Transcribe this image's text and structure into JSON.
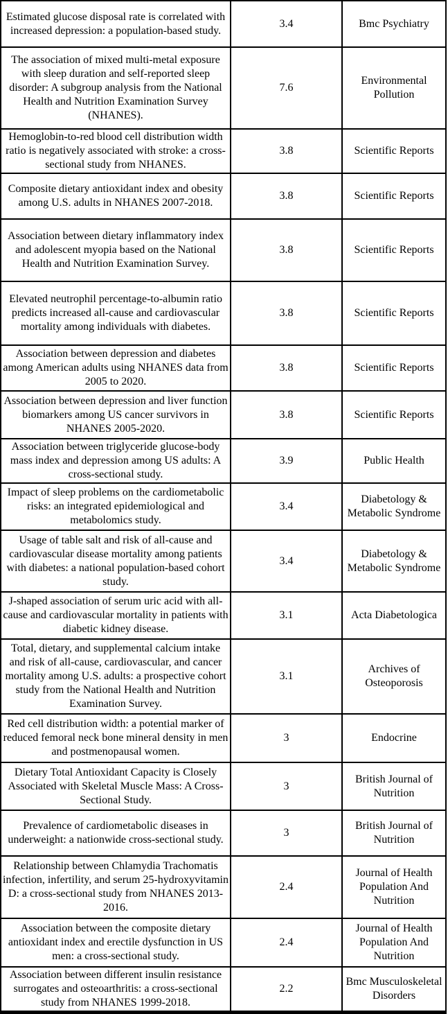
{
  "page": {
    "background_color": "#ffffff",
    "text_color": "#000000",
    "border_color": "#000000"
  },
  "table": {
    "rows": [
      {
        "title": "Estimated glucose disposal rate is correlated with increased depression: a population-based study.",
        "impact_factor": "3.4",
        "journal": "Bmc Psychiatry"
      },
      {
        "title": "The association of mixed multi-metal exposure with sleep duration and self-reported sleep disorder: A subgroup analysis from the National Health and Nutrition Examination Survey (NHANES).",
        "impact_factor": "7.6",
        "journal": "Environmental Pollution"
      },
      {
        "title": "Hemoglobin-to-red blood cell distribution width ratio is negatively associated with stroke: a cross-sectional study from NHANES.",
        "impact_factor": "3.8",
        "journal": "Scientific Reports"
      },
      {
        "title": "Composite dietary antioxidant index and obesity among U.S. adults in NHANES 2007-2018.",
        "impact_factor": "3.8",
        "journal": "Scientific Reports"
      },
      {
        "title": "Association between dietary inflammatory index and adolescent myopia based on the National Health and Nutrition Examination Survey.",
        "impact_factor": "3.8",
        "journal": "Scientific Reports"
      },
      {
        "title": "Elevated neutrophil percentage-to-albumin ratio predicts increased all-cause and cardiovascular mortality among individuals with diabetes.",
        "impact_factor": "3.8",
        "journal": "Scientific Reports"
      },
      {
        "title": "Association between depression and diabetes among American adults using NHANES data from 2005 to 2020.",
        "impact_factor": "3.8",
        "journal": "Scientific Reports"
      },
      {
        "title": "Association between depression and liver function biomarkers among US cancer survivors in NHANES 2005-2020.",
        "impact_factor": "3.8",
        "journal": "Scientific Reports"
      },
      {
        "title": "Association between triglyceride glucose-body mass index and depression among US adults: A cross-sectional study.",
        "impact_factor": "3.9",
        "journal": "Public Health"
      },
      {
        "title": "Impact of sleep problems on the cardiometabolic risks: an integrated epidemiological and metabolomics study.",
        "impact_factor": "3.4",
        "journal": "Diabetology & Metabolic Syndrome"
      },
      {
        "title": "Usage of table salt and risk of all-cause and cardiovascular disease mortality among patients with diabetes: a national population-based cohort study.",
        "impact_factor": "3.4",
        "journal": "Diabetology & Metabolic Syndrome"
      },
      {
        "title": "J-shaped association of serum uric acid with all-cause and cardiovascular mortality in patients with diabetic kidney disease.",
        "impact_factor": "3.1",
        "journal": "Acta Diabetologica"
      },
      {
        "title": "Total, dietary, and supplemental calcium intake and risk of all-cause, cardiovascular, and cancer mortality among U.S. adults: a prospective cohort study from the National Health and Nutrition Examination Survey.",
        "impact_factor": "3.1",
        "journal": "Archives of Osteoporosis"
      },
      {
        "title": "Red cell distribution width: a potential marker of reduced femoral neck bone mineral density in men and postmenopausal women.",
        "impact_factor": "3",
        "journal": "Endocrine"
      },
      {
        "title": "Dietary Total Antioxidant Capacity is Closely Associated with Skeletal Muscle Mass: A Cross-Sectional Study.",
        "impact_factor": "3",
        "journal": "British Journal of Nutrition"
      },
      {
        "title": "Prevalence of cardiometabolic diseases in underweight: a nationwide cross-sectional study.",
        "impact_factor": "3",
        "journal": "British Journal of Nutrition"
      },
      {
        "title": "Relationship between Chlamydia Trachomatis infection, infertility, and serum 25-hydroxyvitamin D: a cross-sectional study from NHANES 2013-2016.",
        "impact_factor": "2.4",
        "journal": "Journal of Health Population And Nutrition"
      },
      {
        "title": "Association between the composite dietary antioxidant index and erectile dysfunction in US men: a cross-sectional study.",
        "impact_factor": "2.4",
        "journal": "Journal of Health Population And Nutrition"
      },
      {
        "title": "Association between different insulin resistance surrogates and osteoarthritis: a cross-sectional study from NHANES 1999-2018.",
        "impact_factor": "2.2",
        "journal": "Bmc Musculoskeletal Disorders"
      }
    ]
  }
}
